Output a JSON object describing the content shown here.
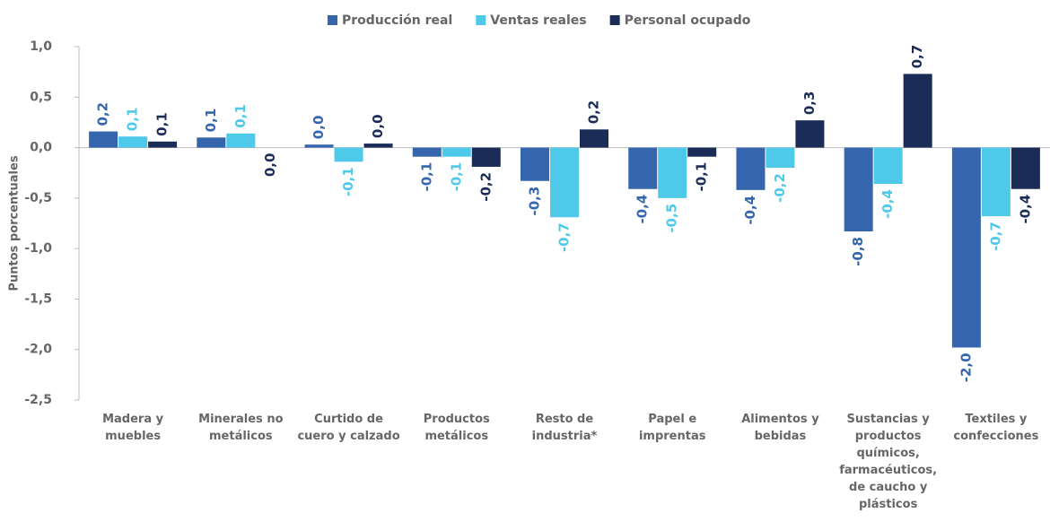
{
  "chart_data": {
    "type": "bar",
    "y_label": "Puntos porcentuales",
    "categories": [
      "Madera y muebles",
      "Minerales no metálicos",
      "Curtido de cuero y calzado",
      "Productos metálicos",
      "Resto de industria*",
      "Papel e imprentas",
      "Alimentos y bebidas",
      "Sustancias y productos químicos, farmacéuticos, de caucho y plásticos",
      "Textiles y confecciones"
    ],
    "series": [
      {
        "name": "Producción real",
        "color": "#3566ad",
        "values": [
          0.16,
          0.1,
          0.03,
          -0.09,
          -0.33,
          -0.41,
          -0.42,
          -0.83,
          -1.98
        ],
        "value_labels": [
          "0,2",
          "0,1",
          "0,0",
          "-0,1",
          "-0,3",
          "-0,4",
          "-0,4",
          "-0,8",
          "-2,0"
        ]
      },
      {
        "name": "Ventas reales",
        "color": "#4fc9ea",
        "values": [
          0.11,
          0.14,
          -0.14,
          -0.09,
          -0.69,
          -0.5,
          -0.2,
          -0.36,
          -0.68
        ],
        "value_labels": [
          "0,1",
          "0,1",
          "-0,1",
          "-0,1",
          "-0,7",
          "-0,5",
          "-0,2",
          "-0,4",
          "-0,7"
        ]
      },
      {
        "name": "Personal ocupado",
        "color": "#1b2d57",
        "values": [
          0.06,
          0.0,
          0.04,
          -0.19,
          0.18,
          -0.09,
          0.27,
          0.73,
          -0.41
        ],
        "value_labels": [
          "0,1",
          "0,0",
          "0,0",
          "-0,2",
          "0,2",
          "-0,1",
          "0,3",
          "0,7",
          "-0,4"
        ]
      }
    ],
    "ylim": [
      -2.5,
      1.0
    ],
    "yticks": [
      {
        "value": -2.5,
        "label": "-2,5"
      },
      {
        "value": -2.0,
        "label": "-2,0"
      },
      {
        "value": -1.5,
        "label": "-1,5"
      },
      {
        "value": -1.0,
        "label": "-1,0"
      },
      {
        "value": -0.5,
        "label": "-0,5"
      },
      {
        "value": 0,
        "label": "0,0"
      },
      {
        "value": 0.5,
        "label": "0,5"
      },
      {
        "value": 1.0,
        "label": "1,0"
      }
    ],
    "legend": "top"
  }
}
